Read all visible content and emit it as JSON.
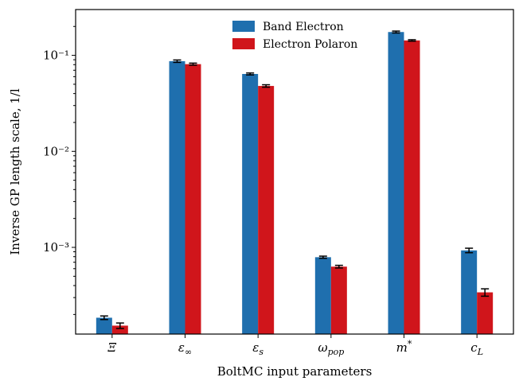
{
  "chart_data": {
    "type": "bar",
    "xlabel": "BoltMC input parameters",
    "ylabel": "Inverse GP length scale, 1/l",
    "yscale": "log",
    "ylim": [
      0.000125,
      0.3
    ],
    "yticks": [
      {
        "value": 0.001,
        "label": "10⁻³"
      },
      {
        "value": 0.01,
        "label": "10⁻²"
      },
      {
        "value": 0.1,
        "label": "10⁻¹"
      }
    ],
    "categories": [
      "Ξ",
      "ε∞",
      "εs",
      "ωpop",
      "m*",
      "cL"
    ],
    "series": [
      {
        "name": "Band Electron",
        "color": "#1f6fae",
        "values": [
          0.000185,
          0.087,
          0.064,
          0.00079,
          0.175,
          0.00093
        ],
        "errors": [
          8e-06,
          0.0025,
          0.0015,
          2e-05,
          0.004,
          5e-05
        ]
      },
      {
        "name": "Electron Polaron",
        "color": "#d0151b",
        "values": [
          0.000153,
          0.081,
          0.048,
          0.00063,
          0.143,
          0.00034
        ],
        "errors": [
          1e-05,
          0.002,
          0.0014,
          2e-05,
          0.0025,
          3e-05
        ]
      }
    ],
    "legend_position": "top-center",
    "grid": false
  }
}
